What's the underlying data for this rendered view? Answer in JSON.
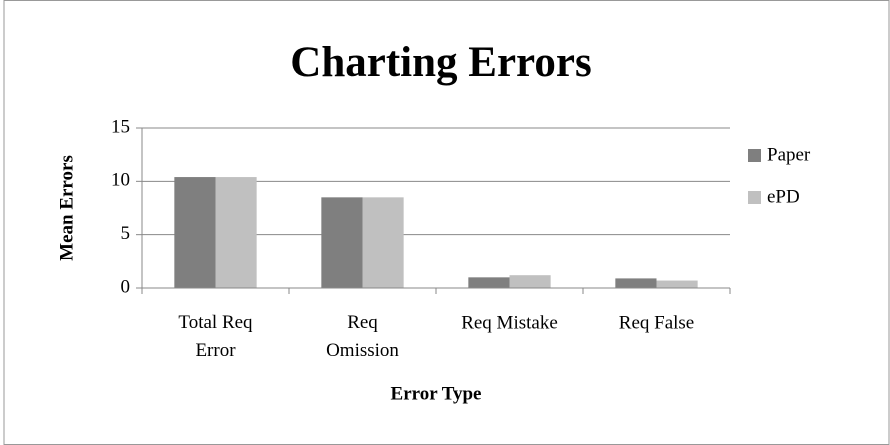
{
  "chart_data": {
    "type": "bar",
    "title": "Charting Errors",
    "x_label": "Error Type",
    "y_label": "Mean Errors",
    "categories": [
      "Total Req Error",
      "Req Omission",
      "Req Mistake",
      "Req False"
    ],
    "series": [
      {
        "name": "Paper",
        "color": "#7f7f7f",
        "values": [
          10.4,
          8.5,
          1.0,
          0.9
        ]
      },
      {
        "name": "ePD",
        "color": "#c0c0c0",
        "values": [
          10.4,
          8.5,
          1.2,
          0.7
        ]
      }
    ],
    "ylim": [
      0,
      15
    ],
    "yticks": [
      0,
      5,
      10,
      15
    ],
    "grid": true,
    "legend": "right"
  }
}
